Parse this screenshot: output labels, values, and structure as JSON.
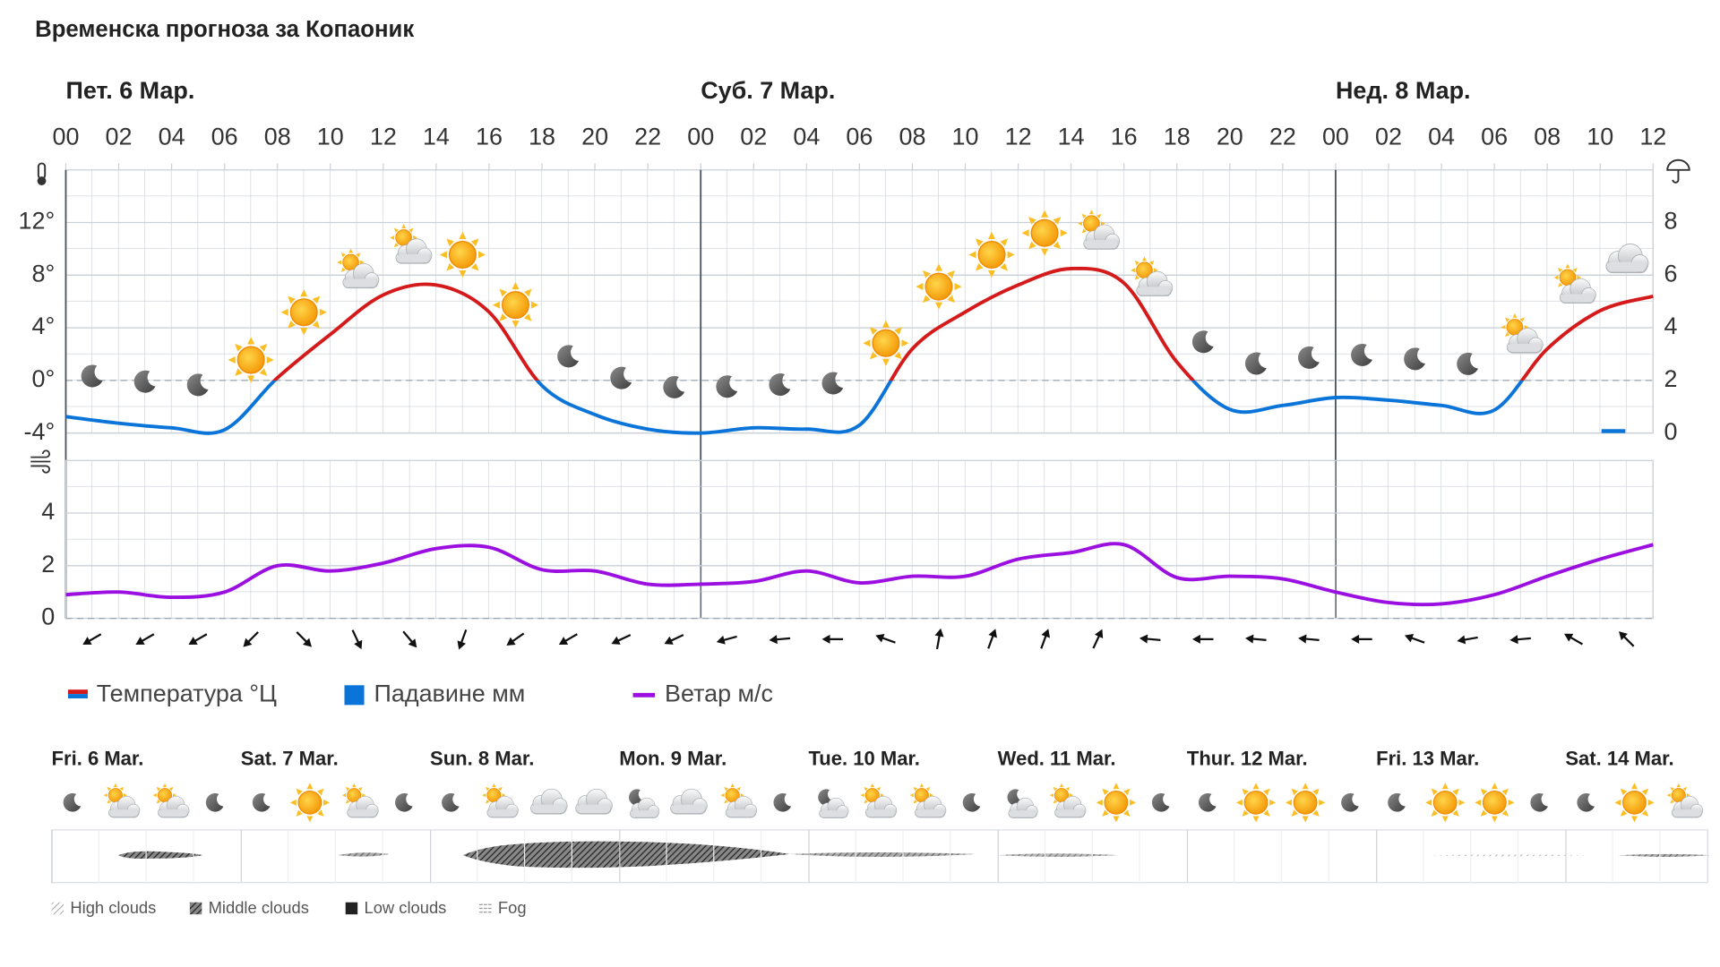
{
  "title": "Временска прогноза за Копаоник",
  "chart_data": [
    {
      "type": "line",
      "x": [
        0,
        2,
        4,
        6,
        8,
        10,
        12,
        14,
        16,
        18,
        20,
        22,
        24,
        26,
        28,
        30,
        32,
        34,
        36,
        38,
        40,
        42,
        44,
        46,
        48,
        50,
        52,
        54,
        56,
        58,
        60
      ],
      "xlim": [
        0,
        60
      ],
      "xticks": [
        {
          "value": 0,
          "label": "00"
        },
        {
          "value": 2,
          "label": "02"
        },
        {
          "value": 4,
          "label": "04"
        },
        {
          "value": 6,
          "label": "06"
        },
        {
          "value": 8,
          "label": "08"
        },
        {
          "value": 10,
          "label": "10"
        },
        {
          "value": 12,
          "label": "12"
        },
        {
          "value": 14,
          "label": "14"
        },
        {
          "value": 16,
          "label": "16"
        },
        {
          "value": 18,
          "label": "18"
        },
        {
          "value": 20,
          "label": "20"
        },
        {
          "value": 22,
          "label": "22"
        },
        {
          "value": 24,
          "label": "00"
        },
        {
          "value": 26,
          "label": "02"
        },
        {
          "value": 28,
          "label": "04"
        },
        {
          "value": 30,
          "label": "06"
        },
        {
          "value": 32,
          "label": "08"
        },
        {
          "value": 34,
          "label": "10"
        },
        {
          "value": 36,
          "label": "12"
        },
        {
          "value": 38,
          "label": "14"
        },
        {
          "value": 40,
          "label": "16"
        },
        {
          "value": 42,
          "label": "18"
        },
        {
          "value": 44,
          "label": "20"
        },
        {
          "value": 46,
          "label": "22"
        },
        {
          "value": 48,
          "label": "00"
        },
        {
          "value": 50,
          "label": "02"
        },
        {
          "value": 52,
          "label": "04"
        },
        {
          "value": 54,
          "label": "06"
        },
        {
          "value": 56,
          "label": "08"
        },
        {
          "value": 58,
          "label": "10"
        },
        {
          "value": 60,
          "label": "12"
        }
      ],
      "days": [
        {
          "value": 0,
          "label": "Пет. 6 Мар."
        },
        {
          "value": 24,
          "label": "Суб. 7 Мар."
        },
        {
          "value": 48,
          "label": "Нед. 8 Мар."
        }
      ],
      "ylim": [
        -4,
        16
      ],
      "yticks": [
        {
          "value": -4,
          "label": "-4°"
        },
        {
          "value": 0,
          "label": "0°"
        },
        {
          "value": 4,
          "label": "4°"
        },
        {
          "value": 8,
          "label": "8°"
        },
        {
          "value": 12,
          "label": "12°"
        }
      ],
      "y2lim": [
        0,
        10
      ],
      "y2ticks": [
        0,
        2,
        4,
        6,
        8
      ],
      "grid": true,
      "series": [
        {
          "name": "Температура °Ц",
          "colors": [
            "#d41a1a",
            "#0b74d9"
          ],
          "values": [
            -2.75,
            -3.25,
            -3.6,
            -3.75,
            0.2,
            3.5,
            6.5,
            7.25,
            5.2,
            -0.4,
            -2.6,
            -3.7,
            -4,
            -3.6,
            -3.7,
            -3.4,
            2.4,
            5.2,
            7.25,
            8.5,
            7.4,
            1.4,
            -2.2,
            -1.9,
            -1.3,
            -1.5,
            -1.9,
            -2.25,
            2.4,
            5.3,
            6.4
          ]
        },
        {
          "name": "Падавине мм",
          "color": "#0b74d9",
          "axis": "y2",
          "type": "bar",
          "values": [
            0,
            0,
            0,
            0,
            0,
            0,
            0,
            0,
            0,
            0,
            0,
            0,
            0,
            0,
            0,
            0,
            0,
            0,
            0,
            0,
            0,
            0,
            0,
            0,
            0,
            0,
            0,
            0,
            0,
            0.15,
            0
          ]
        }
      ]
    },
    {
      "type": "line",
      "x": [
        0,
        2,
        4,
        6,
        8,
        10,
        12,
        14,
        16,
        18,
        20,
        22,
        24,
        26,
        28,
        30,
        32,
        34,
        36,
        38,
        40,
        42,
        44,
        46,
        48,
        50,
        52,
        54,
        56,
        58,
        60
      ],
      "xlim": [
        0,
        60
      ],
      "ylim": [
        0,
        6
      ],
      "yticks": [
        0,
        2,
        4
      ],
      "grid": true,
      "series": [
        {
          "name": "Ветар м/с",
          "color": "#9b10e0",
          "values": [
            0.9,
            1.0,
            0.8,
            1.0,
            2.0,
            1.8,
            2.1,
            2.65,
            2.7,
            1.85,
            1.8,
            1.3,
            1.3,
            1.4,
            1.8,
            1.35,
            1.6,
            1.6,
            2.25,
            2.5,
            2.8,
            1.55,
            1.6,
            1.5,
            1.0,
            0.6,
            0.55,
            0.9,
            1.6,
            2.25,
            2.8
          ]
        }
      ],
      "directions": [
        240,
        240,
        240,
        225,
        135,
        155,
        140,
        200,
        235,
        240,
        245,
        245,
        255,
        265,
        270,
        290,
        10,
        20,
        20,
        25,
        275,
        270,
        275,
        275,
        270,
        290,
        260,
        265,
        300,
        315
      ]
    }
  ],
  "outlook": {
    "days": [
      "Fri. 6 Mar.",
      "Sat. 7 Mar.",
      "Sun. 8 Mar.",
      "Mon. 9 Mar.",
      "Tue. 10 Mar.",
      "Wed. 11 Mar.",
      "Thur. 12 Mar.",
      "Fri. 13 Mar.",
      "Sat. 14 Mar."
    ],
    "cloud_legend": [
      "High clouds",
      "Middle clouds",
      "Low clouds",
      "Fog"
    ]
  }
}
